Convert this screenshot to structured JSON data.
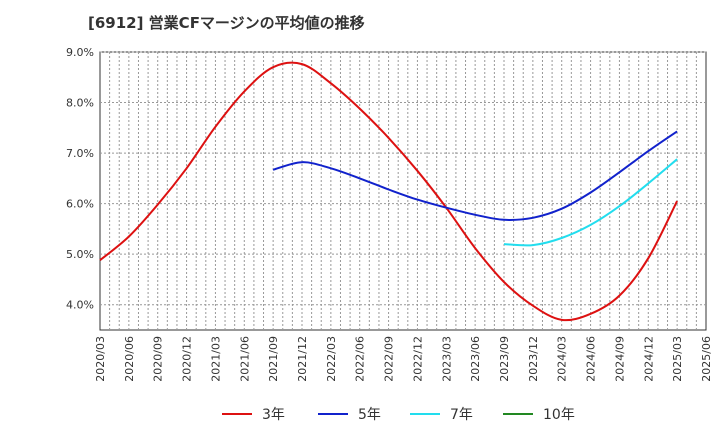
{
  "title": "[6912]  営業CFマージンの平均値の推移",
  "chart_data": {
    "type": "line",
    "title": "[6912]  営業CFマージンの平均値の推移",
    "xlabel": "",
    "ylabel": "",
    "x_ticks": [
      "2020/03",
      "2020/06",
      "2020/09",
      "2020/12",
      "2021/03",
      "2021/06",
      "2021/09",
      "2021/12",
      "2022/03",
      "2022/06",
      "2022/09",
      "2022/12",
      "2023/03",
      "2023/06",
      "2023/09",
      "2023/12",
      "2024/03",
      "2024/06",
      "2024/09",
      "2024/12",
      "2025/03",
      "2025/06"
    ],
    "y_ticks": [
      "4.0%",
      "5.0%",
      "6.0%",
      "7.0%",
      "8.0%",
      "9.0%"
    ],
    "ylim": [
      3.5,
      9.0
    ],
    "grid": true,
    "legend_position": "bottom",
    "series": [
      {
        "name": "3年",
        "color": "#dd1111",
        "x": [
          "2020/03",
          "2020/06",
          "2020/09",
          "2020/12",
          "2021/03",
          "2021/06",
          "2021/09",
          "2021/12",
          "2022/03",
          "2022/06",
          "2022/09",
          "2022/12",
          "2023/03",
          "2023/06",
          "2023/09",
          "2023/12",
          "2024/03",
          "2024/06",
          "2024/09",
          "2024/12",
          "2025/03"
        ],
        "values": [
          4.88,
          5.35,
          5.98,
          6.7,
          7.52,
          8.22,
          8.7,
          8.76,
          8.38,
          7.88,
          7.3,
          6.65,
          5.92,
          5.12,
          4.45,
          3.98,
          3.7,
          3.82,
          4.18,
          4.92,
          6.05
        ]
      },
      {
        "name": "5年",
        "color": "#1122cc",
        "x": [
          "2021/09",
          "2021/12",
          "2022/03",
          "2022/06",
          "2022/09",
          "2022/12",
          "2023/03",
          "2023/06",
          "2023/09",
          "2023/12",
          "2024/03",
          "2024/06",
          "2024/09",
          "2024/12",
          "2025/03"
        ],
        "values": [
          6.67,
          6.82,
          6.7,
          6.5,
          6.28,
          6.08,
          5.92,
          5.78,
          5.68,
          5.72,
          5.9,
          6.22,
          6.62,
          7.04,
          7.43
        ]
      },
      {
        "name": "7年",
        "color": "#22ddee",
        "x": [
          "2023/09",
          "2023/12",
          "2024/03",
          "2024/06",
          "2024/09",
          "2024/12",
          "2025/03"
        ],
        "values": [
          5.2,
          5.18,
          5.32,
          5.58,
          5.95,
          6.4,
          6.88
        ]
      },
      {
        "name": "10年",
        "color": "#228822",
        "x": [],
        "values": []
      }
    ]
  }
}
